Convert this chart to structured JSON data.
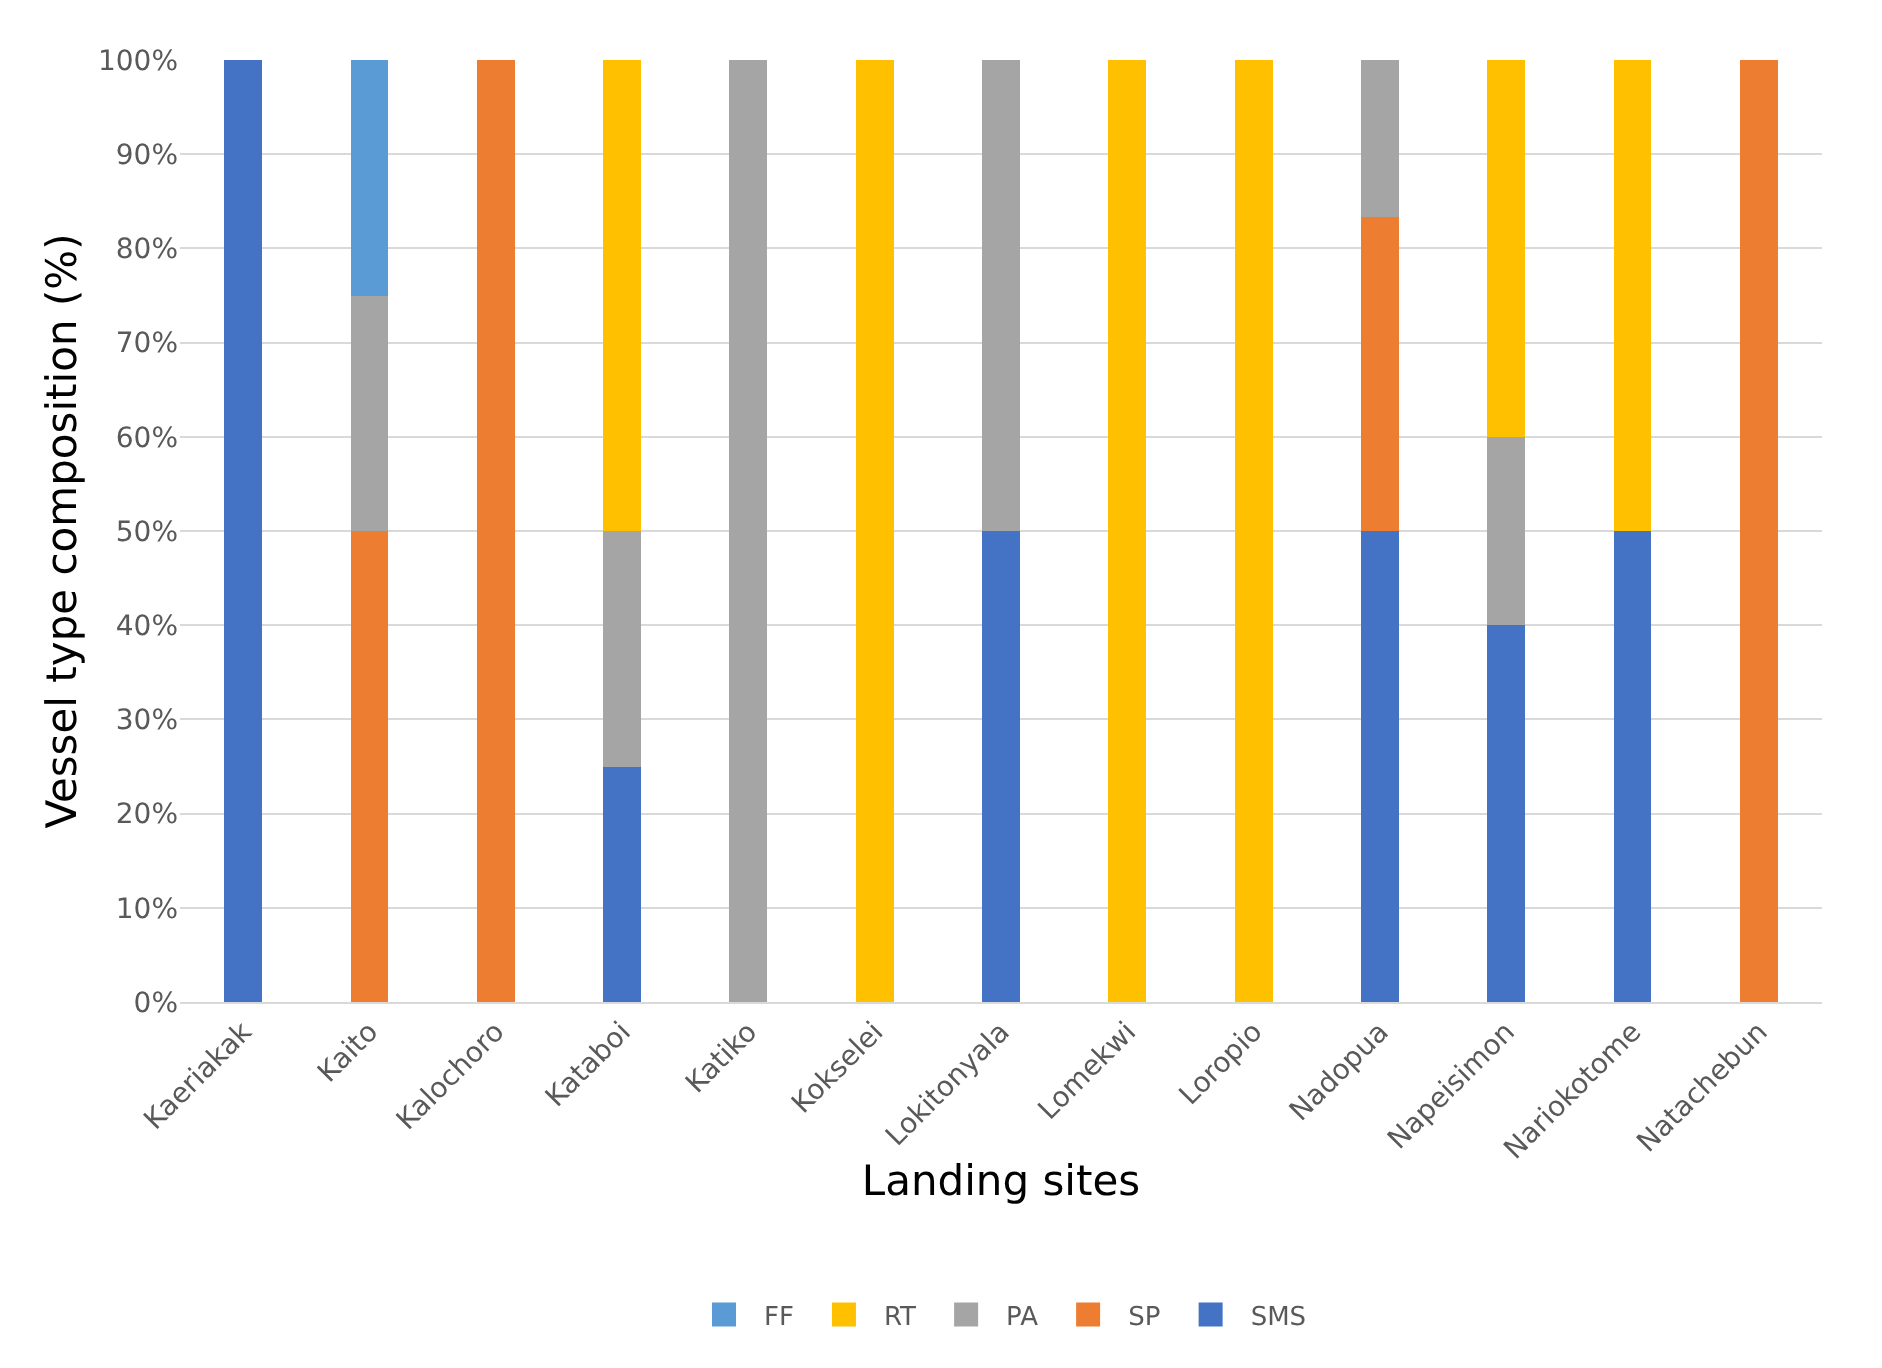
{
  "chart_data": {
    "type": "bar",
    "stacked": true,
    "xlabel": "Landing sites",
    "ylabel": "Vessel type composition (%)",
    "categories": [
      "Kaeriakak",
      "Kaito",
      "Kalochoro",
      "Kataboi",
      "Katiko",
      "Kokselei",
      "Lokitonyala",
      "Lomekwi",
      "Loropio",
      "Nadopua",
      "Napeisimon",
      "Nariokotome",
      "Natachebun"
    ],
    "series": [
      {
        "name": "SMS",
        "color": "#4472c4",
        "values": [
          100,
          0,
          0,
          25,
          0,
          0,
          50,
          0,
          0,
          50,
          40,
          50,
          0
        ]
      },
      {
        "name": "SP",
        "color": "#ed7d31",
        "values": [
          0,
          50,
          100,
          0,
          0,
          0,
          0,
          0,
          0,
          33.3,
          0,
          0,
          100
        ]
      },
      {
        "name": "PA",
        "color": "#a5a5a5",
        "values": [
          0,
          25,
          0,
          25,
          100,
          0,
          50,
          0,
          0,
          16.7,
          20,
          0,
          0
        ]
      },
      {
        "name": "RT",
        "color": "#ffc000",
        "values": [
          0,
          0,
          0,
          50,
          0,
          100,
          0,
          100,
          100,
          0,
          40,
          50,
          0
        ]
      },
      {
        "name": "FF",
        "color": "#5b9bd5",
        "values": [
          0,
          25,
          0,
          0,
          0,
          0,
          0,
          0,
          0,
          0,
          0,
          0,
          0
        ]
      }
    ],
    "ylim": [
      0,
      100
    ],
    "yticks": [
      {
        "value": 0,
        "label": "0%"
      },
      {
        "value": 10,
        "label": "10%"
      },
      {
        "value": 20,
        "label": "20%"
      },
      {
        "value": 30,
        "label": "30%"
      },
      {
        "value": 40,
        "label": "40%"
      },
      {
        "value": 50,
        "label": "50%"
      },
      {
        "value": 60,
        "label": "60%"
      },
      {
        "value": 70,
        "label": "70%"
      },
      {
        "value": 80,
        "label": "80%"
      },
      {
        "value": 90,
        "label": "90%"
      },
      {
        "value": 100,
        "label": "100%"
      }
    ],
    "grid": "y",
    "legend": "bottom"
  }
}
